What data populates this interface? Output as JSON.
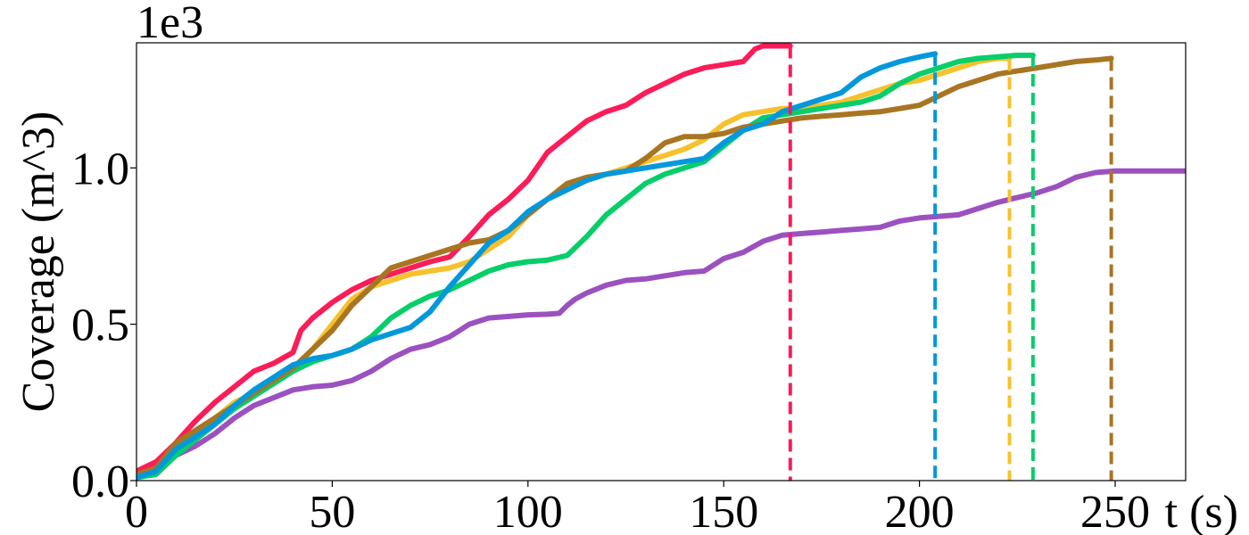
{
  "chart_data": {
    "type": "line",
    "title": "",
    "xlabel": "t (s)",
    "ylabel": "Coverage (m^3)",
    "y_offset_text": "1e3",
    "xlim": [
      0,
      268
    ],
    "ylim": [
      0,
      1400
    ],
    "x_ticks": [
      0,
      50,
      100,
      150,
      200,
      250
    ],
    "x_tick_labels": [
      "0",
      "50",
      "100",
      "150",
      "200",
      "250"
    ],
    "y_ticks": [
      0,
      500,
      1000
    ],
    "y_tick_labels": [
      "0.0",
      "0.5",
      "1.0"
    ],
    "grid": false,
    "legend": "none",
    "series": [
      {
        "color": "#9b51c0",
        "end_time": null,
        "points": [
          [
            0,
            20
          ],
          [
            5,
            40
          ],
          [
            10,
            80
          ],
          [
            15,
            110
          ],
          [
            20,
            150
          ],
          [
            25,
            200
          ],
          [
            30,
            240
          ],
          [
            35,
            265
          ],
          [
            40,
            290
          ],
          [
            45,
            300
          ],
          [
            50,
            305
          ],
          [
            55,
            320
          ],
          [
            60,
            350
          ],
          [
            65,
            390
          ],
          [
            70,
            420
          ],
          [
            75,
            435
          ],
          [
            80,
            460
          ],
          [
            85,
            500
          ],
          [
            90,
            520
          ],
          [
            95,
            525
          ],
          [
            100,
            530
          ],
          [
            105,
            532
          ],
          [
            108,
            535
          ],
          [
            110,
            560
          ],
          [
            112,
            580
          ],
          [
            115,
            600
          ],
          [
            120,
            625
          ],
          [
            125,
            640
          ],
          [
            130,
            645
          ],
          [
            135,
            655
          ],
          [
            140,
            665
          ],
          [
            145,
            670
          ],
          [
            150,
            710
          ],
          [
            155,
            730
          ],
          [
            160,
            765
          ],
          [
            165,
            785
          ],
          [
            170,
            790
          ],
          [
            175,
            795
          ],
          [
            180,
            800
          ],
          [
            185,
            805
          ],
          [
            190,
            810
          ],
          [
            195,
            830
          ],
          [
            200,
            840
          ],
          [
            205,
            845
          ],
          [
            210,
            850
          ],
          [
            215,
            870
          ],
          [
            220,
            890
          ],
          [
            225,
            905
          ],
          [
            230,
            920
          ],
          [
            235,
            940
          ],
          [
            240,
            970
          ],
          [
            245,
            985
          ],
          [
            250,
            990
          ],
          [
            255,
            990
          ],
          [
            260,
            990
          ],
          [
            268,
            990
          ]
        ]
      },
      {
        "color": "#fc1c58",
        "end_time": 167,
        "points": [
          [
            0,
            30
          ],
          [
            5,
            60
          ],
          [
            10,
            120
          ],
          [
            15,
            190
          ],
          [
            20,
            250
          ],
          [
            25,
            300
          ],
          [
            30,
            350
          ],
          [
            35,
            375
          ],
          [
            40,
            410
          ],
          [
            42,
            480
          ],
          [
            45,
            520
          ],
          [
            50,
            570
          ],
          [
            55,
            610
          ],
          [
            60,
            640
          ],
          [
            65,
            660
          ],
          [
            70,
            680
          ],
          [
            75,
            700
          ],
          [
            80,
            715
          ],
          [
            85,
            780
          ],
          [
            90,
            850
          ],
          [
            95,
            900
          ],
          [
            100,
            960
          ],
          [
            105,
            1050
          ],
          [
            110,
            1100
          ],
          [
            115,
            1150
          ],
          [
            120,
            1180
          ],
          [
            125,
            1200
          ],
          [
            130,
            1240
          ],
          [
            135,
            1270
          ],
          [
            140,
            1300
          ],
          [
            145,
            1320
          ],
          [
            150,
            1330
          ],
          [
            155,
            1340
          ],
          [
            158,
            1380
          ],
          [
            160,
            1390
          ],
          [
            165,
            1390
          ],
          [
            167,
            1390
          ]
        ]
      },
      {
        "color": "#f7c12d",
        "end_time": 223,
        "points": [
          [
            0,
            15
          ],
          [
            5,
            30
          ],
          [
            10,
            100
          ],
          [
            15,
            150
          ],
          [
            20,
            200
          ],
          [
            25,
            250
          ],
          [
            30,
            280
          ],
          [
            35,
            310
          ],
          [
            40,
            360
          ],
          [
            45,
            420
          ],
          [
            50,
            500
          ],
          [
            55,
            580
          ],
          [
            60,
            620
          ],
          [
            65,
            640
          ],
          [
            70,
            660
          ],
          [
            75,
            670
          ],
          [
            80,
            680
          ],
          [
            85,
            700
          ],
          [
            90,
            740
          ],
          [
            95,
            780
          ],
          [
            100,
            850
          ],
          [
            105,
            900
          ],
          [
            110,
            930
          ],
          [
            115,
            960
          ],
          [
            120,
            980
          ],
          [
            125,
            1000
          ],
          [
            130,
            1020
          ],
          [
            135,
            1040
          ],
          [
            140,
            1060
          ],
          [
            145,
            1090
          ],
          [
            150,
            1140
          ],
          [
            155,
            1170
          ],
          [
            160,
            1180
          ],
          [
            165,
            1190
          ],
          [
            170,
            1190
          ],
          [
            175,
            1200
          ],
          [
            180,
            1210
          ],
          [
            185,
            1230
          ],
          [
            190,
            1250
          ],
          [
            195,
            1270
          ],
          [
            200,
            1280
          ],
          [
            205,
            1300
          ],
          [
            210,
            1320
          ],
          [
            215,
            1340
          ],
          [
            220,
            1350
          ],
          [
            223,
            1350
          ]
        ]
      },
      {
        "color": "#06ce6a",
        "end_time": 229,
        "points": [
          [
            0,
            10
          ],
          [
            5,
            20
          ],
          [
            10,
            80
          ],
          [
            15,
            130
          ],
          [
            20,
            180
          ],
          [
            25,
            230
          ],
          [
            30,
            270
          ],
          [
            35,
            310
          ],
          [
            40,
            350
          ],
          [
            45,
            380
          ],
          [
            50,
            400
          ],
          [
            55,
            420
          ],
          [
            60,
            460
          ],
          [
            65,
            520
          ],
          [
            70,
            560
          ],
          [
            75,
            590
          ],
          [
            80,
            610
          ],
          [
            85,
            640
          ],
          [
            90,
            670
          ],
          [
            95,
            690
          ],
          [
            100,
            700
          ],
          [
            105,
            705
          ],
          [
            110,
            720
          ],
          [
            115,
            780
          ],
          [
            120,
            850
          ],
          [
            125,
            900
          ],
          [
            130,
            950
          ],
          [
            135,
            980
          ],
          [
            140,
            1000
          ],
          [
            145,
            1020
          ],
          [
            150,
            1070
          ],
          [
            155,
            1120
          ],
          [
            160,
            1160
          ],
          [
            165,
            1170
          ],
          [
            170,
            1180
          ],
          [
            175,
            1190
          ],
          [
            180,
            1200
          ],
          [
            185,
            1210
          ],
          [
            190,
            1230
          ],
          [
            195,
            1270
          ],
          [
            200,
            1300
          ],
          [
            205,
            1320
          ],
          [
            210,
            1340
          ],
          [
            215,
            1350
          ],
          [
            220,
            1355
          ],
          [
            225,
            1360
          ],
          [
            229,
            1360
          ]
        ]
      },
      {
        "color": "#a87522",
        "end_time": 249,
        "points": [
          [
            0,
            20
          ],
          [
            5,
            40
          ],
          [
            10,
            120
          ],
          [
            15,
            160
          ],
          [
            20,
            200
          ],
          [
            25,
            240
          ],
          [
            30,
            280
          ],
          [
            35,
            320
          ],
          [
            40,
            360
          ],
          [
            45,
            420
          ],
          [
            50,
            480
          ],
          [
            55,
            560
          ],
          [
            60,
            620
          ],
          [
            65,
            680
          ],
          [
            70,
            700
          ],
          [
            75,
            720
          ],
          [
            80,
            740
          ],
          [
            85,
            760
          ],
          [
            90,
            770
          ],
          [
            95,
            800
          ],
          [
            100,
            850
          ],
          [
            105,
            900
          ],
          [
            110,
            950
          ],
          [
            115,
            970
          ],
          [
            120,
            980
          ],
          [
            125,
            990
          ],
          [
            130,
            1030
          ],
          [
            135,
            1080
          ],
          [
            140,
            1100
          ],
          [
            145,
            1100
          ],
          [
            150,
            1110
          ],
          [
            155,
            1130
          ],
          [
            160,
            1140
          ],
          [
            165,
            1150
          ],
          [
            170,
            1160
          ],
          [
            175,
            1165
          ],
          [
            180,
            1170
          ],
          [
            185,
            1175
          ],
          [
            190,
            1180
          ],
          [
            195,
            1190
          ],
          [
            200,
            1200
          ],
          [
            205,
            1230
          ],
          [
            210,
            1260
          ],
          [
            215,
            1280
          ],
          [
            220,
            1300
          ],
          [
            225,
            1310
          ],
          [
            230,
            1320
          ],
          [
            235,
            1330
          ],
          [
            240,
            1340
          ],
          [
            245,
            1345
          ],
          [
            249,
            1350
          ]
        ]
      },
      {
        "color": "#0398db",
        "end_time": 204,
        "points": [
          [
            0,
            10
          ],
          [
            5,
            30
          ],
          [
            10,
            100
          ],
          [
            15,
            140
          ],
          [
            20,
            180
          ],
          [
            25,
            240
          ],
          [
            30,
            290
          ],
          [
            35,
            330
          ],
          [
            40,
            370
          ],
          [
            45,
            390
          ],
          [
            50,
            400
          ],
          [
            55,
            420
          ],
          [
            60,
            450
          ],
          [
            65,
            470
          ],
          [
            70,
            490
          ],
          [
            75,
            540
          ],
          [
            80,
            620
          ],
          [
            85,
            690
          ],
          [
            90,
            760
          ],
          [
            95,
            800
          ],
          [
            100,
            860
          ],
          [
            105,
            900
          ],
          [
            110,
            930
          ],
          [
            115,
            960
          ],
          [
            120,
            980
          ],
          [
            125,
            990
          ],
          [
            130,
            1000
          ],
          [
            135,
            1010
          ],
          [
            140,
            1020
          ],
          [
            145,
            1030
          ],
          [
            150,
            1080
          ],
          [
            155,
            1120
          ],
          [
            160,
            1140
          ],
          [
            165,
            1180
          ],
          [
            170,
            1200
          ],
          [
            175,
            1220
          ],
          [
            180,
            1240
          ],
          [
            185,
            1290
          ],
          [
            190,
            1320
          ],
          [
            195,
            1340
          ],
          [
            200,
            1355
          ],
          [
            204,
            1365
          ]
        ]
      }
    ]
  }
}
